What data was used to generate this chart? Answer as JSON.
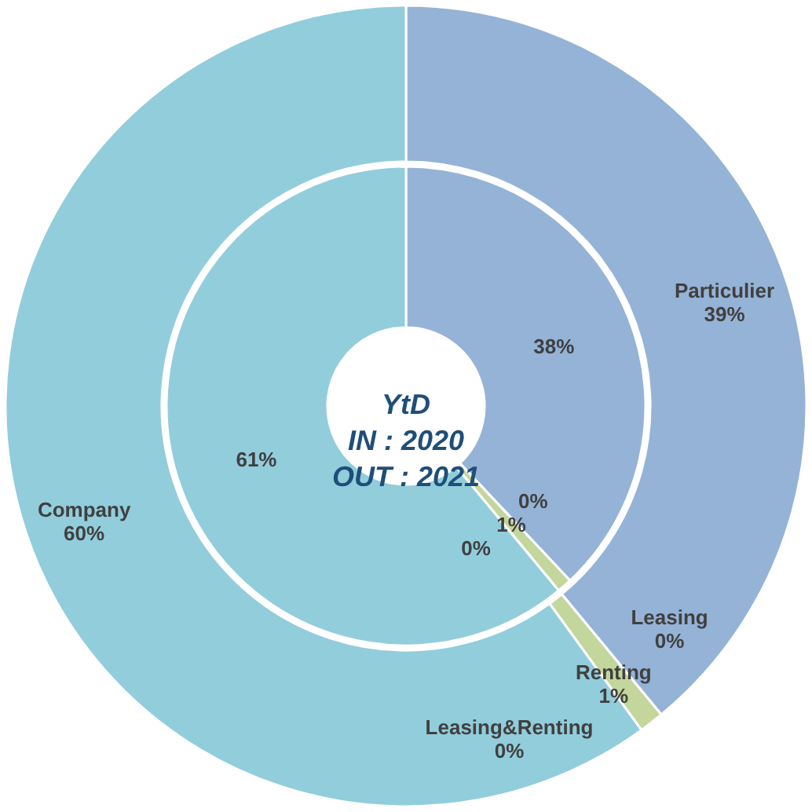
{
  "chart_data": {
    "type": "donut",
    "title": "YtD",
    "categories": [
      "Particulier",
      "Leasing",
      "Renting",
      "Leasing&Renting",
      "Company"
    ],
    "colors": [
      "#95b3d7",
      "#b3a2c7",
      "#c3d69b",
      "#f9be8f",
      "#92cddc"
    ],
    "series": [
      {
        "name": "IN : 2020",
        "values": [
          38,
          0,
          1,
          0,
          61
        ],
        "value_labels": [
          "38%",
          "0%",
          "1%",
          "0%",
          "61%"
        ]
      },
      {
        "name": "OUT : 2021",
        "values": [
          39,
          0,
          1,
          0,
          60
        ],
        "value_labels": [
          "39%",
          "0%",
          "1%",
          "0%",
          "60%"
        ]
      }
    ]
  }
}
